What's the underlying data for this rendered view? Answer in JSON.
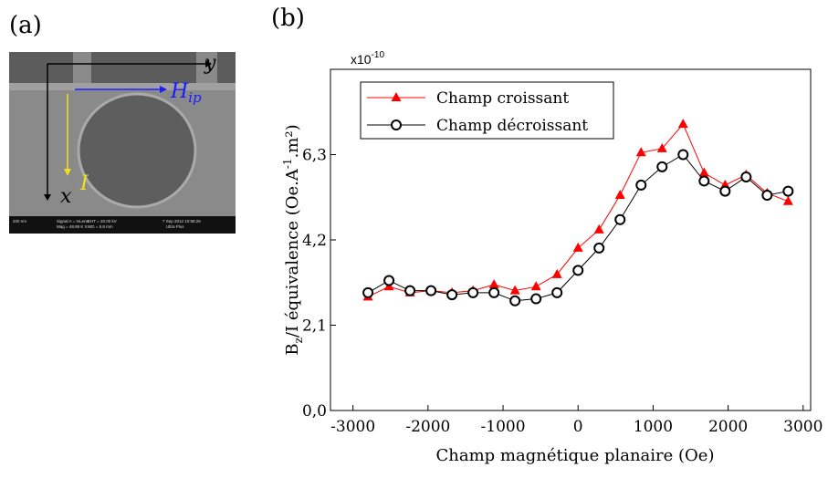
{
  "panel_a": {
    "label": "(a)",
    "axis_y": "y",
    "axis_x": "x",
    "field": "H",
    "field_sub": "ip",
    "current": "I",
    "footer": [
      "200 nm",
      "Signal A = InLens",
      "Mag = 48.89 K X",
      "EHT = 20.00 kV",
      "WD = 6.8 mm",
      "7 Sep 2012 10:58:26",
      "Ultra Plus"
    ]
  },
  "panel_b": {
    "label": "(b)"
  },
  "chart_data": {
    "type": "line",
    "multiplier": "x10",
    "multiplier_exp": "-10",
    "xlabel": "Champ magnétique planaire (Oe)",
    "ylabel_parts": [
      "B",
      "z",
      "/I équivalence (Oe.A",
      "-1",
      ".m²)"
    ],
    "x": [
      -2800,
      -2520,
      -2240,
      -1960,
      -1680,
      -1400,
      -1120,
      -840,
      -560,
      -280,
      0,
      280,
      560,
      840,
      1120,
      1400,
      1680,
      1960,
      2240,
      2520,
      2800
    ],
    "series": [
      {
        "name": "Champ croissant",
        "color": "#ff0000",
        "marker": "triangle",
        "values": [
          2.8,
          3.05,
          2.9,
          2.95,
          2.9,
          2.95,
          3.1,
          2.95,
          3.05,
          3.35,
          4.0,
          4.45,
          5.3,
          6.35,
          6.45,
          7.05,
          5.85,
          5.55,
          5.8,
          5.35,
          5.15
        ]
      },
      {
        "name": "Champ décroissant",
        "color": "#000000",
        "marker": "circle",
        "values": [
          2.9,
          3.2,
          2.95,
          2.95,
          2.85,
          2.9,
          2.9,
          2.7,
          2.75,
          2.9,
          3.45,
          4.0,
          4.7,
          5.55,
          6.0,
          6.3,
          5.65,
          5.4,
          5.75,
          5.3,
          5.4
        ]
      }
    ],
    "xlim": [
      -3300,
      3100
    ],
    "ylim": [
      0,
      8.4
    ],
    "xticks": [
      -3000,
      -2000,
      -1000,
      0,
      1000,
      2000,
      3000
    ],
    "yticks": [
      {
        "value": 0,
        "label": "0,0"
      },
      {
        "value": 2.1,
        "label": "2,1"
      },
      {
        "value": 4.2,
        "label": "4,2"
      },
      {
        "value": 6.3,
        "label": "6,3"
      }
    ],
    "legend": "upper left"
  }
}
